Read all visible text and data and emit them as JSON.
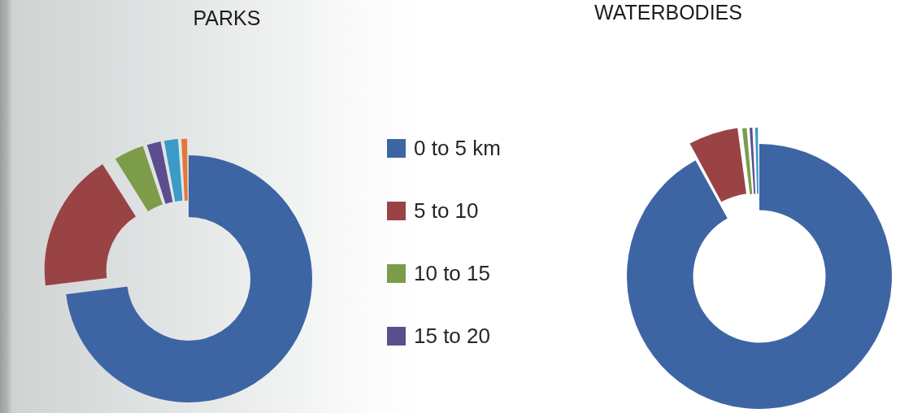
{
  "chart_data": [
    {
      "type": "donut",
      "title": "PARKS",
      "categories": [
        "0 to 5 km",
        "5 to 10",
        "10 to 15",
        "15 to 20",
        null,
        null
      ],
      "values": [
        73,
        18,
        4,
        2,
        2,
        1
      ],
      "colors": [
        "#3d65a4",
        "#9a4345",
        "#7c9c4a",
        "#5c4d8e",
        "#3a9bc8",
        "#e2773a"
      ],
      "legend": "right"
    },
    {
      "type": "donut",
      "title": "WATERBODIES",
      "categories": [
        null,
        null,
        null,
        null,
        null
      ],
      "values": [
        92,
        6,
        0.8,
        0.6,
        0.6
      ],
      "colors": [
        "#3d65a4",
        "#9a4345",
        "#7c9c4a",
        "#5c4d8e",
        "#3a9bc8"
      ]
    }
  ]
}
